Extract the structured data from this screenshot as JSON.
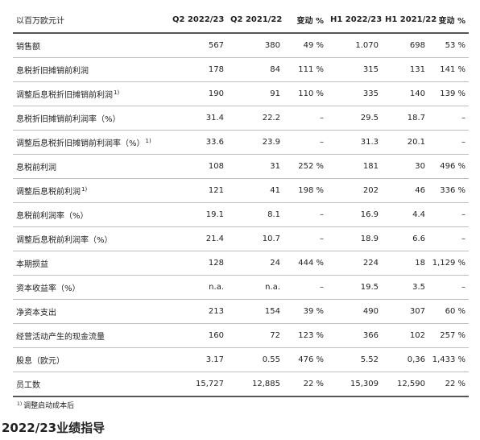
{
  "table": {
    "headers": [
      "以百万欧元计",
      "Q2 2022/23",
      "Q2 2021/22",
      "变动 %",
      "H1 2022/23",
      "H1 2021/22",
      "变动 %"
    ],
    "rows": [
      {
        "label": "销售额",
        "sup": "",
        "values": [
          "567",
          "380",
          "49 %",
          "1.070",
          "698",
          "53 %"
        ]
      },
      {
        "label": "息税折旧摊销前利润",
        "sup": "",
        "values": [
          "178",
          "84",
          "111 %",
          "315",
          "131",
          "141 %"
        ]
      },
      {
        "label": "调整后息税折旧摊销前利润",
        "sup": "1)",
        "values": [
          "190",
          "91",
          "110 %",
          "335",
          "140",
          "139 %"
        ]
      },
      {
        "label": "息税折旧摊销前利润率（%）",
        "sup": "",
        "values": [
          "31.4",
          "22.2",
          "–",
          "29.5",
          "18.7",
          "–"
        ]
      },
      {
        "label": "调整后息税折旧摊销前利润率（%）",
        "sup": "1)",
        "values": [
          "33.6",
          "23.9",
          "–",
          "31.3",
          "20.1",
          "–"
        ]
      },
      {
        "label": "息税前利润",
        "sup": "",
        "values": [
          "108",
          "31",
          "252 %",
          "181",
          "30",
          "496 %"
        ]
      },
      {
        "label": "调整后息税前利润",
        "sup": "1)",
        "values": [
          "121",
          "41",
          "198 %",
          "202",
          "46",
          "336 %"
        ]
      },
      {
        "label": "息税前利润率（%）",
        "sup": "",
        "values": [
          "19.1",
          "8.1",
          "–",
          "16.9",
          "4.4",
          "–"
        ]
      },
      {
        "label": "调整后息税前利润率（%）",
        "sup": "",
        "values": [
          "21.4",
          "10.7",
          "–",
          "18.9",
          "6.6",
          "–"
        ]
      },
      {
        "label": "本期损益",
        "sup": "",
        "values": [
          "128",
          "24",
          "444 %",
          "224",
          "18",
          "1,129 %"
        ]
      },
      {
        "label": "资本收益率（%）",
        "sup": "",
        "values": [
          "n.a.",
          "n.a.",
          "–",
          "19.5",
          "3.5",
          "–"
        ]
      },
      {
        "label": "净资本支出",
        "sup": "",
        "values": [
          "213",
          "154",
          "39 %",
          "490",
          "307",
          "60 %"
        ]
      },
      {
        "label": "经营活动产生的现金流量",
        "sup": "",
        "values": [
          "160",
          "72",
          "123 %",
          "366",
          "102",
          "257 %"
        ]
      },
      {
        "label": "股息（欧元）",
        "sup": "",
        "values": [
          "3.17",
          "0.55",
          "476 %",
          "5.52",
          "0,36",
          "1,433 %"
        ]
      },
      {
        "label": "员工数",
        "sup": "",
        "values": [
          "15,727",
          "12,885",
          "22 %",
          "15,309",
          "12,590",
          "22 %"
        ]
      }
    ]
  },
  "footnote": {
    "marker": "1)",
    "text": "调整启动成本后"
  },
  "section_heading": "2022/23业绩指导"
}
